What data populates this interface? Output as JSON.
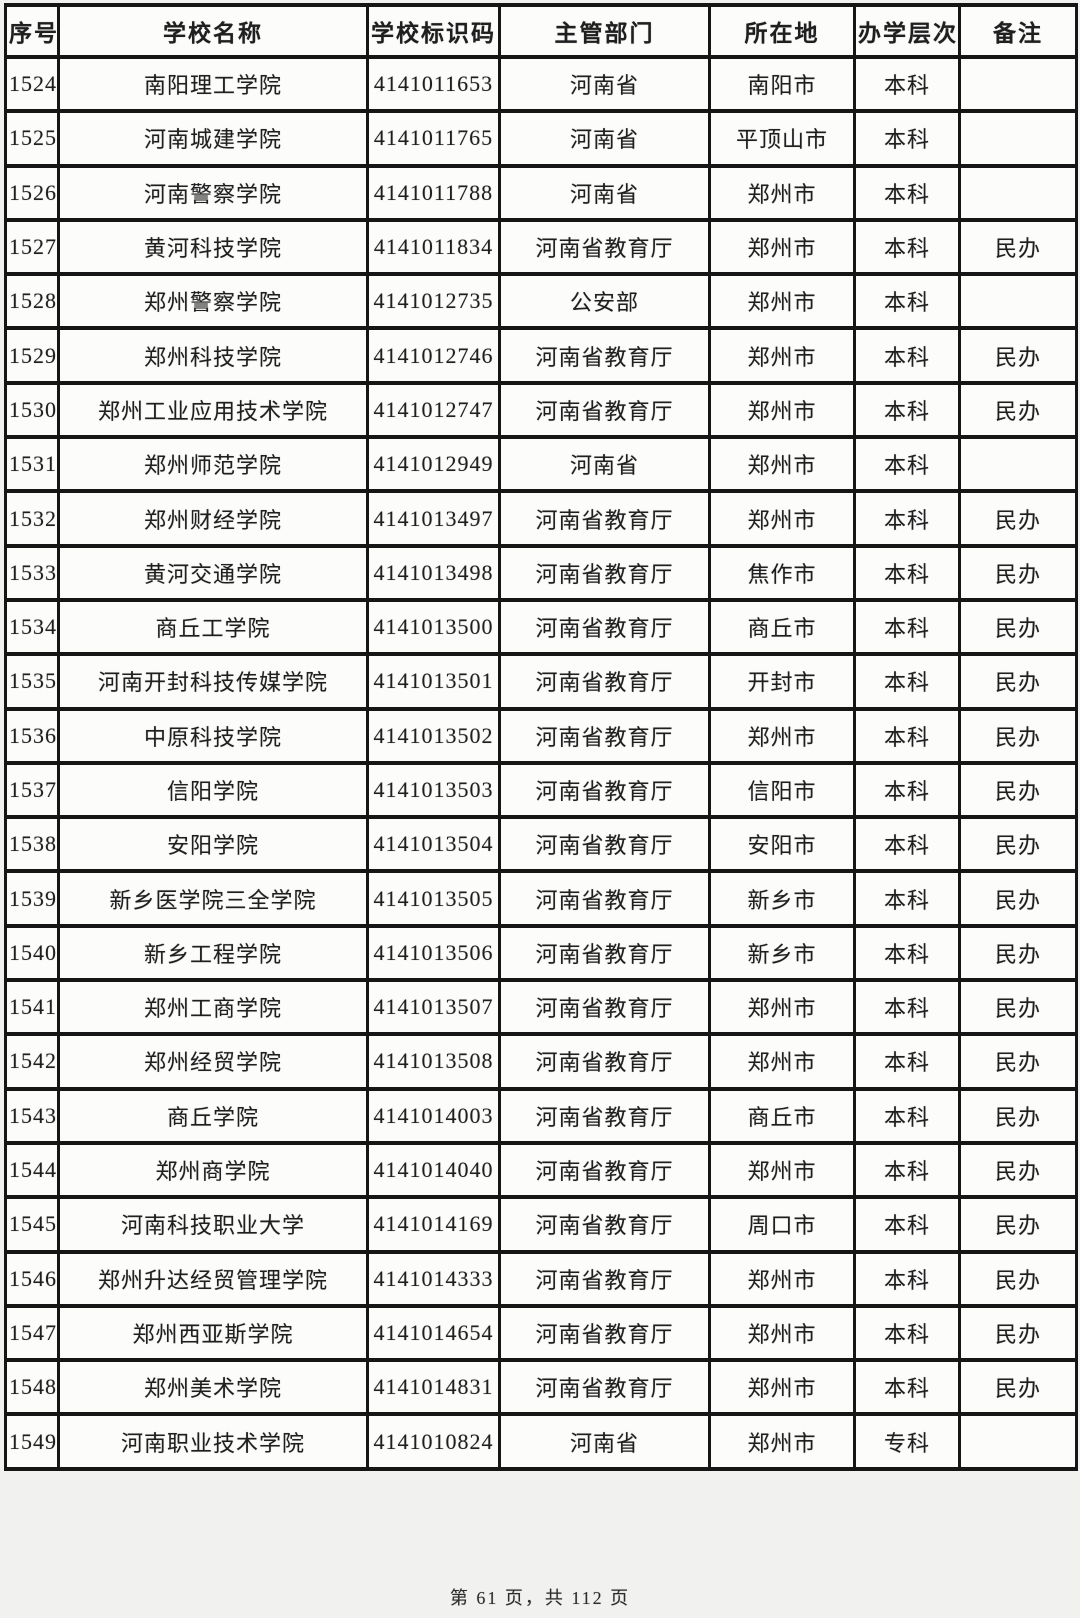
{
  "page": {
    "footer": "第 61 页，共 112 页"
  },
  "table": {
    "columns": [
      "序号",
      "学校名称",
      "学校标识码",
      "主管部门",
      "所在地",
      "办学层次",
      "备注"
    ],
    "rows": [
      {
        "no": "1524",
        "name": "南阳理工学院",
        "code": "4141011653",
        "dept": "河南省",
        "city": "南阳市",
        "level": "本科",
        "note": ""
      },
      {
        "no": "1525",
        "name": "河南城建学院",
        "code": "4141011765",
        "dept": "河南省",
        "city": "平顶山市",
        "level": "本科",
        "note": ""
      },
      {
        "no": "1526",
        "name": "河南警察学院",
        "code": "4141011788",
        "dept": "河南省",
        "city": "郑州市",
        "level": "本科",
        "note": ""
      },
      {
        "no": "1527",
        "name": "黄河科技学院",
        "code": "4141011834",
        "dept": "河南省教育厅",
        "city": "郑州市",
        "level": "本科",
        "note": "民办"
      },
      {
        "no": "1528",
        "name": "郑州警察学院",
        "code": "4141012735",
        "dept": "公安部",
        "city": "郑州市",
        "level": "本科",
        "note": ""
      },
      {
        "no": "1529",
        "name": "郑州科技学院",
        "code": "4141012746",
        "dept": "河南省教育厅",
        "city": "郑州市",
        "level": "本科",
        "note": "民办"
      },
      {
        "no": "1530",
        "name": "郑州工业应用技术学院",
        "code": "4141012747",
        "dept": "河南省教育厅",
        "city": "郑州市",
        "level": "本科",
        "note": "民办"
      },
      {
        "no": "1531",
        "name": "郑州师范学院",
        "code": "4141012949",
        "dept": "河南省",
        "city": "郑州市",
        "level": "本科",
        "note": ""
      },
      {
        "no": "1532",
        "name": "郑州财经学院",
        "code": "4141013497",
        "dept": "河南省教育厅",
        "city": "郑州市",
        "level": "本科",
        "note": "民办"
      },
      {
        "no": "1533",
        "name": "黄河交通学院",
        "code": "4141013498",
        "dept": "河南省教育厅",
        "city": "焦作市",
        "level": "本科",
        "note": "民办"
      },
      {
        "no": "1534",
        "name": "商丘工学院",
        "code": "4141013500",
        "dept": "河南省教育厅",
        "city": "商丘市",
        "level": "本科",
        "note": "民办"
      },
      {
        "no": "1535",
        "name": "河南开封科技传媒学院",
        "code": "4141013501",
        "dept": "河南省教育厅",
        "city": "开封市",
        "level": "本科",
        "note": "民办"
      },
      {
        "no": "1536",
        "name": "中原科技学院",
        "code": "4141013502",
        "dept": "河南省教育厅",
        "city": "郑州市",
        "level": "本科",
        "note": "民办"
      },
      {
        "no": "1537",
        "name": "信阳学院",
        "code": "4141013503",
        "dept": "河南省教育厅",
        "city": "信阳市",
        "level": "本科",
        "note": "民办"
      },
      {
        "no": "1538",
        "name": "安阳学院",
        "code": "4141013504",
        "dept": "河南省教育厅",
        "city": "安阳市",
        "level": "本科",
        "note": "民办"
      },
      {
        "no": "1539",
        "name": "新乡医学院三全学院",
        "code": "4141013505",
        "dept": "河南省教育厅",
        "city": "新乡市",
        "level": "本科",
        "note": "民办"
      },
      {
        "no": "1540",
        "name": "新乡工程学院",
        "code": "4141013506",
        "dept": "河南省教育厅",
        "city": "新乡市",
        "level": "本科",
        "note": "民办"
      },
      {
        "no": "1541",
        "name": "郑州工商学院",
        "code": "4141013507",
        "dept": "河南省教育厅",
        "city": "郑州市",
        "level": "本科",
        "note": "民办"
      },
      {
        "no": "1542",
        "name": "郑州经贸学院",
        "code": "4141013508",
        "dept": "河南省教育厅",
        "city": "郑州市",
        "level": "本科",
        "note": "民办"
      },
      {
        "no": "1543",
        "name": "商丘学院",
        "code": "4141014003",
        "dept": "河南省教育厅",
        "city": "商丘市",
        "level": "本科",
        "note": "民办"
      },
      {
        "no": "1544",
        "name": "郑州商学院",
        "code": "4141014040",
        "dept": "河南省教育厅",
        "city": "郑州市",
        "level": "本科",
        "note": "民办"
      },
      {
        "no": "1545",
        "name": "河南科技职业大学",
        "code": "4141014169",
        "dept": "河南省教育厅",
        "city": "周口市",
        "level": "本科",
        "note": "民办"
      },
      {
        "no": "1546",
        "name": "郑州升达经贸管理学院",
        "code": "4141014333",
        "dept": "河南省教育厅",
        "city": "郑州市",
        "level": "本科",
        "note": "民办"
      },
      {
        "no": "1547",
        "name": "郑州西亚斯学院",
        "code": "4141014654",
        "dept": "河南省教育厅",
        "city": "郑州市",
        "level": "本科",
        "note": "民办"
      },
      {
        "no": "1548",
        "name": "郑州美术学院",
        "code": "4141014831",
        "dept": "河南省教育厅",
        "city": "郑州市",
        "level": "本科",
        "note": "民办"
      },
      {
        "no": "1549",
        "name": "河南职业技术学院",
        "code": "4141010824",
        "dept": "河南省",
        "city": "郑州市",
        "level": "专科",
        "note": ""
      }
    ]
  }
}
